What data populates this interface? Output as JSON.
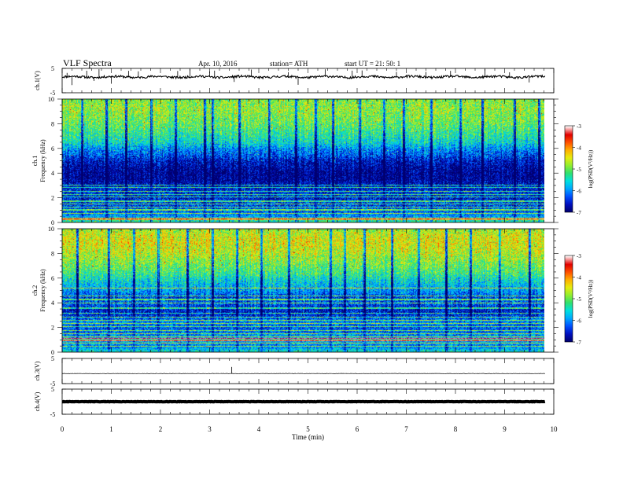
{
  "header": {
    "title": "VLF  Spectra",
    "date": "Apr. 10, 2016",
    "station": "station= ATH",
    "start": "start  UT  =   21: 50: 1"
  },
  "colors": {
    "colormap": [
      "#000070",
      "#0010c0",
      "#0050ff",
      "#00a8ff",
      "#00e0e0",
      "#30e070",
      "#90ee30",
      "#e6ec10",
      "#ffb000",
      "#ff5000",
      "#e00000",
      "#ff9090",
      "#ffffff"
    ],
    "trace": "#000000"
  },
  "chart_data": [
    {
      "type": "line",
      "panel": "ch1-waveform",
      "ylabel": "ch.1(V)",
      "yticks": [
        "5",
        "-5"
      ],
      "ylim": [
        -5,
        5
      ],
      "xlim": [
        0,
        10
      ],
      "baseline": 1.5,
      "spikes": [
        0.1,
        0.2,
        0.5,
        0.65,
        0.75,
        1.0,
        1.35,
        1.55,
        2.35,
        2.6,
        3.0,
        3.1,
        3.5,
        3.85,
        4.6,
        4.8,
        5.35,
        5.9,
        6.1,
        6.8,
        7.4,
        7.9,
        8.6,
        9.1,
        9.5
      ]
    },
    {
      "type": "heatmap",
      "panel": "ch1-spectrogram",
      "ylabel": "ch.1\nFrequency  (kHz)",
      "yticks": [
        "0",
        "2",
        "4",
        "6",
        "8",
        "10"
      ],
      "ylim": [
        0,
        10
      ],
      "xlim": [
        0,
        9.8
      ],
      "colorbar": {
        "label": "log(PSD(V²/Hz))",
        "ticks": [
          "-3",
          "-4",
          "-5",
          "-6",
          "-7"
        ],
        "range": [
          -7,
          -3
        ]
      },
      "profile_freq_khz": [
        0,
        0.5,
        1,
        1.5,
        2,
        2.5,
        3,
        3.5,
        4,
        4.5,
        5,
        5.5,
        6,
        6.5,
        7,
        7.5,
        8,
        8.5,
        9,
        9.5,
        10
      ],
      "profile_logpsd": [
        -5.0,
        -5.8,
        -6.2,
        -6.3,
        -6.5,
        -6.4,
        -6.6,
        -6.9,
        -6.95,
        -6.8,
        -6.6,
        -6.2,
        -5.9,
        -5.4,
        -5.2,
        -5.0,
        -4.8,
        -4.7,
        -4.6,
        -4.6,
        -4.7
      ],
      "lines_khz": [
        0.25,
        0.4,
        0.75,
        1.05,
        1.25,
        1.5,
        1.75,
        2.1,
        2.3,
        2.55,
        2.85,
        3.05
      ],
      "bright_lines_khz": [
        0.3
      ],
      "events_min": [
        0.4,
        0.9,
        1.3,
        1.8,
        2.3,
        2.9,
        3.05,
        3.6,
        4.2,
        4.75,
        5.15,
        5.5,
        6.05,
        6.55,
        6.95,
        7.5,
        8.1,
        8.55,
        9.2,
        9.7
      ]
    },
    {
      "type": "heatmap",
      "panel": "ch2-spectrogram",
      "ylabel": "ch.2\nFrequency  (kHz)",
      "yticks": [
        "0",
        "2",
        "4",
        "6",
        "8",
        "10"
      ],
      "ylim": [
        0,
        10
      ],
      "xlim": [
        0,
        9.8
      ],
      "colorbar": {
        "label": "log(PSD(V²/Hz))",
        "ticks": [
          "-3",
          "-4",
          "-5",
          "-6",
          "-7"
        ],
        "range": [
          -7,
          -3
        ]
      },
      "profile_freq_khz": [
        0,
        0.5,
        1,
        1.5,
        2,
        2.5,
        3,
        3.5,
        4,
        4.5,
        5,
        5.5,
        6,
        6.5,
        7,
        7.5,
        8,
        8.5,
        9,
        9.5,
        10
      ],
      "profile_logpsd": [
        -5.2,
        -6.0,
        -5.6,
        -6.0,
        -6.2,
        -5.9,
        -6.4,
        -6.6,
        -6.1,
        -6.3,
        -5.8,
        -5.6,
        -5.3,
        -5.0,
        -4.8,
        -4.6,
        -4.4,
        -4.3,
        -4.2,
        -4.3,
        -4.5
      ],
      "lines_khz": [
        0.5,
        0.75,
        1.0,
        1.3,
        1.5,
        1.8,
        2.1,
        2.35,
        2.6,
        2.85,
        3.2,
        3.6,
        4.0,
        4.3,
        4.6,
        5.2
      ],
      "bright_lines_khz": [
        0.95,
        1.15
      ],
      "events_min": [
        0.3,
        0.95,
        1.45,
        1.95,
        2.55,
        3.05,
        3.55,
        4.05,
        4.6,
        5.45,
        5.75,
        6.15,
        6.7,
        7.25,
        7.8,
        8.3,
        8.9,
        9.5
      ]
    },
    {
      "type": "line",
      "panel": "ch3-waveform",
      "ylabel": "ch.3(V)",
      "yticks": [
        "5",
        "-5"
      ],
      "ylim": [
        -5,
        5
      ],
      "xlim": [
        0,
        10
      ],
      "baseline": -1.0,
      "spikes": [
        3.45
      ]
    },
    {
      "type": "line",
      "panel": "ch4-waveform",
      "ylabel": "ch.4(V)",
      "yticks": [
        "5",
        "-5"
      ],
      "ylim": [
        -5,
        5
      ],
      "xlim": [
        0,
        10
      ],
      "baseline": 0.0,
      "spikes": []
    },
    {
      "type": "axis",
      "panel": "time-axis",
      "xlabel": "Time  (min)",
      "xticks": [
        "0",
        "1",
        "2",
        "3",
        "4",
        "5",
        "6",
        "7",
        "8",
        "9",
        "10"
      ],
      "xlim": [
        0,
        10
      ]
    }
  ]
}
